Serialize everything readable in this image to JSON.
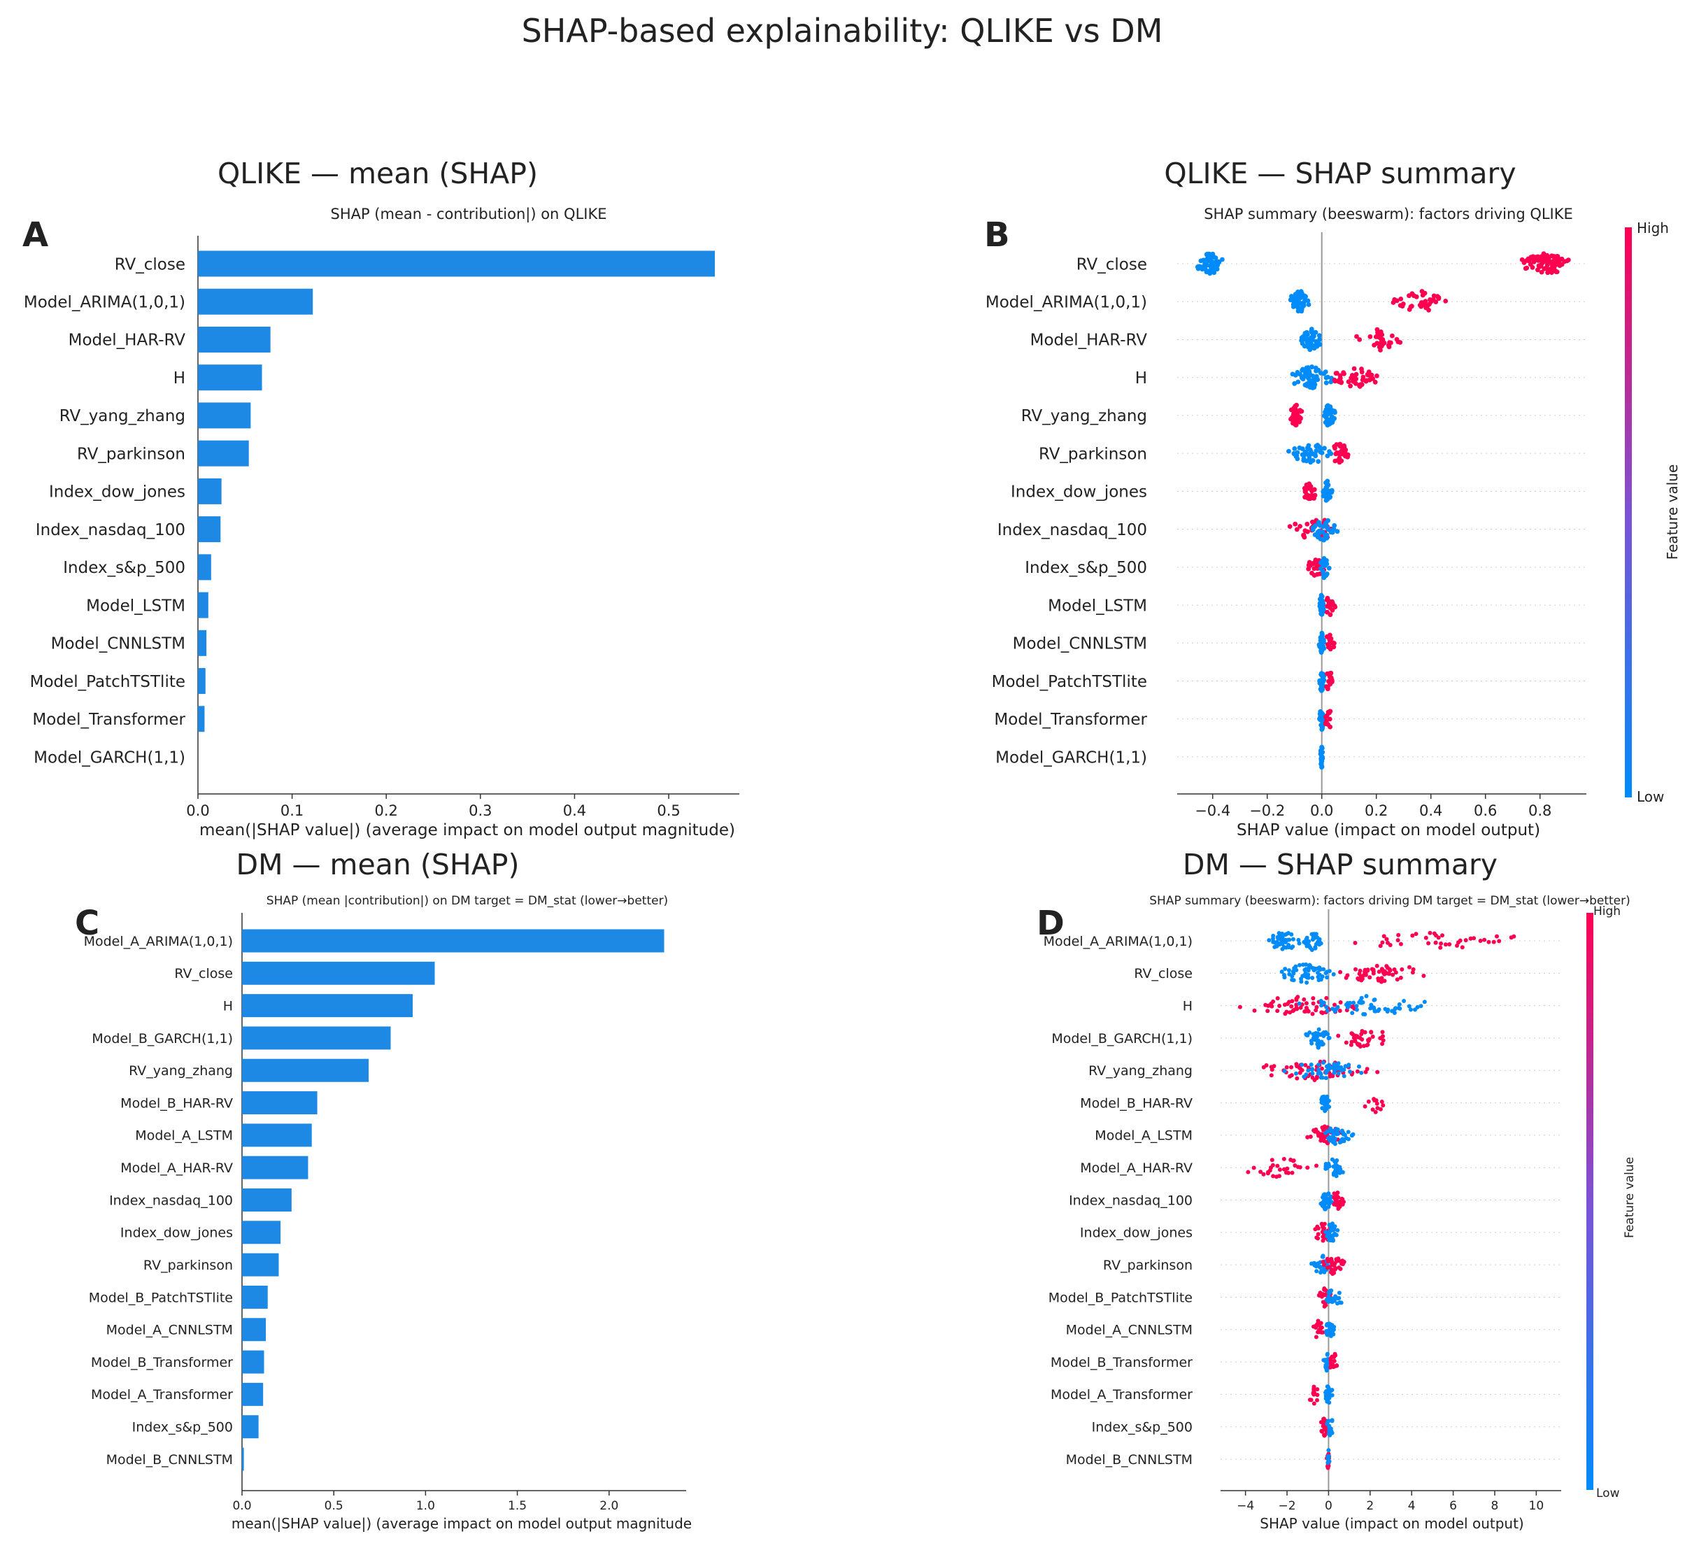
{
  "figure": {
    "title": "SHAP-based explainability: QLIKE vs DM"
  },
  "colors": {
    "bar": "#1E88E5",
    "low": "#008BFB",
    "high": "#FF0051",
    "axis": "#333333",
    "zero_line": "#999999",
    "row_guide": "#cccccc"
  },
  "chart_data": [
    {
      "id": "A",
      "type": "bar",
      "orientation": "horizontal",
      "panel_letter": "A",
      "heading": "QLIKE — mean (SHAP)",
      "title": "SHAP (mean - contribution|) on QLIKE",
      "xlabel": "mean(|SHAP value|) (average impact on model output magnitude)",
      "xlim": [
        0,
        0.575
      ],
      "xticks": [
        0.0,
        0.1,
        0.2,
        0.3,
        0.4,
        0.5
      ],
      "xtick_labels": [
        "0.0",
        "0.1",
        "0.2",
        "0.3",
        "0.4",
        "0.5"
      ],
      "categories": [
        "RV_close",
        "Model_ARIMA(1,0,1)",
        "Model_HAR-RV",
        "H",
        "RV_yang_zhang",
        "RV_parkinson",
        "Index_dow_jones",
        "Index_nasdaq_100",
        "Index_s&p_500",
        "Model_LSTM",
        "Model_CNNLSTM",
        "Model_PatchTSTlite",
        "Model_Transformer",
        "Model_GARCH(1,1)"
      ],
      "values": [
        0.549,
        0.122,
        0.077,
        0.068,
        0.056,
        0.054,
        0.025,
        0.024,
        0.014,
        0.011,
        0.009,
        0.008,
        0.007,
        0.0
      ]
    },
    {
      "id": "B",
      "type": "scatter",
      "variant": "beeswarm",
      "panel_letter": "B",
      "heading": "QLIKE — SHAP summary",
      "title": "SHAP summary (beeswarm): factors driving QLIKE",
      "xlabel": "SHAP value (impact on model output)",
      "xlim": [
        -0.53,
        0.97
      ],
      "xticks": [
        -0.4,
        -0.2,
        0.0,
        0.2,
        0.4,
        0.6,
        0.8
      ],
      "xtick_labels": [
        "−0.4",
        "−0.2",
        "0.0",
        "0.2",
        "0.4",
        "0.6",
        "0.8"
      ],
      "colorbar": {
        "high": "High",
        "low": "Low",
        "label": "Feature value"
      },
      "features": [
        {
          "name": "RV_close",
          "groups": [
            {
              "c": "low",
              "r": [
                -0.46,
                -0.36
              ],
              "n": 70
            },
            {
              "c": "high",
              "r": [
                0.73,
                0.92
              ],
              "n": 80
            }
          ]
        },
        {
          "name": "Model_ARIMA(1,0,1)",
          "groups": [
            {
              "c": "low",
              "r": [
                -0.12,
                -0.04
              ],
              "n": 50
            },
            {
              "c": "high",
              "r": [
                0.24,
                0.47
              ],
              "n": 40
            }
          ]
        },
        {
          "name": "Model_HAR-RV",
          "groups": [
            {
              "c": "low",
              "r": [
                -0.08,
                -0.0
              ],
              "n": 45
            },
            {
              "c": "high",
              "r": [
                0.12,
                0.3
              ],
              "n": 35
            }
          ]
        },
        {
          "name": "H",
          "groups": [
            {
              "c": "low",
              "r": [
                -0.13,
                0.05
              ],
              "n": 60
            },
            {
              "c": "high",
              "r": [
                0.04,
                0.21
              ],
              "n": 45
            }
          ]
        },
        {
          "name": "RV_yang_zhang",
          "groups": [
            {
              "c": "high",
              "r": [
                -0.12,
                -0.07
              ],
              "n": 40
            },
            {
              "c": "low",
              "r": [
                0.0,
                0.05
              ],
              "n": 40
            }
          ]
        },
        {
          "name": "RV_parkinson",
          "groups": [
            {
              "c": "low",
              "r": [
                -0.13,
                0.04
              ],
              "n": 45
            },
            {
              "c": "high",
              "r": [
                0.03,
                0.1
              ],
              "n": 30
            }
          ]
        },
        {
          "name": "Index_dow_jones",
          "groups": [
            {
              "c": "high",
              "r": [
                -0.07,
                -0.01
              ],
              "n": 25
            },
            {
              "c": "low",
              "r": [
                0.0,
                0.04
              ],
              "n": 30
            }
          ]
        },
        {
          "name": "Index_nasdaq_100",
          "groups": [
            {
              "c": "high",
              "r": [
                -0.12,
                0.08
              ],
              "n": 35
            },
            {
              "c": "low",
              "r": [
                -0.05,
                0.06
              ],
              "n": 35
            }
          ]
        },
        {
          "name": "Index_s&p_500",
          "groups": [
            {
              "c": "high",
              "r": [
                -0.06,
                0.02
              ],
              "n": 25
            },
            {
              "c": "low",
              "r": [
                -0.01,
                0.03
              ],
              "n": 25
            }
          ]
        },
        {
          "name": "Model_LSTM",
          "groups": [
            {
              "c": "low",
              "r": [
                -0.01,
                0.01
              ],
              "n": 30
            },
            {
              "c": "high",
              "r": [
                0.01,
                0.05
              ],
              "n": 15
            }
          ]
        },
        {
          "name": "Model_CNNLSTM",
          "groups": [
            {
              "c": "low",
              "r": [
                -0.01,
                0.01
              ],
              "n": 30
            },
            {
              "c": "high",
              "r": [
                0.01,
                0.05
              ],
              "n": 15
            }
          ]
        },
        {
          "name": "Model_PatchTSTlite",
          "groups": [
            {
              "c": "low",
              "r": [
                -0.01,
                0.01
              ],
              "n": 30
            },
            {
              "c": "high",
              "r": [
                0.01,
                0.05
              ],
              "n": 15
            }
          ]
        },
        {
          "name": "Model_Transformer",
          "groups": [
            {
              "c": "low",
              "r": [
                -0.01,
                0.01
              ],
              "n": 30
            },
            {
              "c": "high",
              "r": [
                0.01,
                0.04
              ],
              "n": 12
            }
          ]
        },
        {
          "name": "Model_GARCH(1,1)",
          "groups": [
            {
              "c": "low",
              "r": [
                -0.005,
                0.005
              ],
              "n": 30
            }
          ]
        }
      ]
    },
    {
      "id": "C",
      "type": "bar",
      "orientation": "horizontal",
      "panel_letter": "C",
      "heading": "DM — mean (SHAP)",
      "title": "SHAP (mean |contribution|) on DM target = DM_stat (lower→better)",
      "xlabel": "mean(|SHAP value|) (average impact on model output magnitude",
      "xlim": [
        0,
        2.42
      ],
      "xticks": [
        0.0,
        0.5,
        1.0,
        1.5,
        2.0
      ],
      "xtick_labels": [
        "0.0",
        "0.5",
        "1.0",
        "1.5",
        "2.0"
      ],
      "categories": [
        "Model_A_ARIMA(1,0,1)",
        "RV_close",
        "H",
        "Model_B_GARCH(1,1)",
        "RV_yang_zhang",
        "Model_B_HAR-RV",
        "Model_A_LSTM",
        "Model_A_HAR-RV",
        "Index_nasdaq_100",
        "Index_dow_jones",
        "RV_parkinson",
        "Model_B_PatchTSTlite",
        "Model_A_CNNLSTM",
        "Model_B_Transformer",
        "Model_A_Transformer",
        "Index_s&p_500",
        "Model_B_CNNLSTM"
      ],
      "values": [
        2.3,
        1.05,
        0.93,
        0.81,
        0.69,
        0.41,
        0.38,
        0.36,
        0.27,
        0.21,
        0.2,
        0.14,
        0.13,
        0.12,
        0.115,
        0.09,
        0.01
      ]
    },
    {
      "id": "D",
      "type": "scatter",
      "variant": "beeswarm",
      "panel_letter": "D",
      "heading": "DM — SHAP summary",
      "title": "SHAP summary (beeswarm): factors driving DM target = DM_stat (lower→better)",
      "xlabel": "SHAP value (impact on model output)",
      "xlim": [
        -5.2,
        11.2
      ],
      "xticks": [
        -4,
        -2,
        0,
        2,
        4,
        6,
        8,
        10
      ],
      "xtick_labels": [
        "−4",
        "−2",
        "0",
        "2",
        "4",
        "6",
        "8",
        "10"
      ],
      "colorbar": {
        "high": "High",
        "low": "Low",
        "label": "Feature value"
      },
      "features": [
        {
          "name": "Model_A_ARIMA(1,0,1)",
          "groups": [
            {
              "c": "low",
              "r": [
                -3.0,
                -1.2
              ],
              "n": 45
            },
            {
              "c": "low",
              "r": [
                -1.3,
                -0.3
              ],
              "n": 30
            },
            {
              "c": "high",
              "r": [
                1.2,
                10.0
              ],
              "n": 40
            }
          ]
        },
        {
          "name": "RV_close",
          "groups": [
            {
              "c": "low",
              "r": [
                -2.5,
                0.3
              ],
              "n": 60
            },
            {
              "c": "high",
              "r": [
                0.2,
                4.8
              ],
              "n": 55
            }
          ]
        },
        {
          "name": "H",
          "groups": [
            {
              "c": "high",
              "r": [
                -4.5,
                2.0
              ],
              "n": 60
            },
            {
              "c": "low",
              "r": [
                -1.5,
                5.2
              ],
              "n": 55
            }
          ]
        },
        {
          "name": "Model_B_GARCH(1,1)",
          "groups": [
            {
              "c": "low",
              "r": [
                -1.2,
                0.2
              ],
              "n": 40
            },
            {
              "c": "high",
              "r": [
                0.3,
                3.2
              ],
              "n": 35
            }
          ]
        },
        {
          "name": "RV_yang_zhang",
          "groups": [
            {
              "c": "high",
              "r": [
                -4.0,
                2.8
              ],
              "n": 55
            },
            {
              "c": "low",
              "r": [
                -2.3,
                1.8
              ],
              "n": 50
            }
          ]
        },
        {
          "name": "Model_B_HAR-RV",
          "groups": [
            {
              "c": "low",
              "r": [
                -0.4,
                0.05
              ],
              "n": 30
            },
            {
              "c": "high",
              "r": [
                1.7,
                2.9
              ],
              "n": 12
            }
          ]
        },
        {
          "name": "Model_A_LSTM",
          "groups": [
            {
              "c": "high",
              "r": [
                -1.1,
                0.8
              ],
              "n": 45
            },
            {
              "c": "low",
              "r": [
                -0.3,
                1.2
              ],
              "n": 40
            }
          ]
        },
        {
          "name": "Model_A_HAR-RV",
          "groups": [
            {
              "c": "high",
              "r": [
                -4.3,
                -0.4
              ],
              "n": 30
            },
            {
              "c": "low",
              "r": [
                -0.2,
                0.8
              ],
              "n": 30
            }
          ]
        },
        {
          "name": "Index_nasdaq_100",
          "groups": [
            {
              "c": "low",
              "r": [
                -0.5,
                0.2
              ],
              "n": 35
            },
            {
              "c": "high",
              "r": [
                0.1,
                0.8
              ],
              "n": 25
            }
          ]
        },
        {
          "name": "Index_dow_jones",
          "groups": [
            {
              "c": "high",
              "r": [
                -0.8,
                0.3
              ],
              "n": 30
            },
            {
              "c": "low",
              "r": [
                -0.2,
                0.5
              ],
              "n": 30
            }
          ]
        },
        {
          "name": "RV_parkinson",
          "groups": [
            {
              "c": "low",
              "r": [
                -0.9,
                0.4
              ],
              "n": 35
            },
            {
              "c": "high",
              "r": [
                -0.3,
                0.8
              ],
              "n": 30
            }
          ]
        },
        {
          "name": "Model_B_PatchTSTlite",
          "groups": [
            {
              "c": "high",
              "r": [
                -0.6,
                0.2
              ],
              "n": 25
            },
            {
              "c": "low",
              "r": [
                -0.2,
                0.8
              ],
              "n": 25
            }
          ]
        },
        {
          "name": "Model_A_CNNLSTM",
          "groups": [
            {
              "c": "high",
              "r": [
                -0.8,
                -0.2
              ],
              "n": 20
            },
            {
              "c": "low",
              "r": [
                -0.2,
                0.3
              ],
              "n": 25
            }
          ]
        },
        {
          "name": "Model_B_Transformer",
          "groups": [
            {
              "c": "low",
              "r": [
                -0.3,
                0.1
              ],
              "n": 25
            },
            {
              "c": "high",
              "r": [
                0.0,
                0.5
              ],
              "n": 15
            }
          ]
        },
        {
          "name": "Model_A_Transformer",
          "groups": [
            {
              "c": "high",
              "r": [
                -1.0,
                -0.4
              ],
              "n": 12
            },
            {
              "c": "low",
              "r": [
                -0.2,
                0.2
              ],
              "n": 25
            }
          ]
        },
        {
          "name": "Index_s&p_500",
          "groups": [
            {
              "c": "high",
              "r": [
                -0.4,
                0.0
              ],
              "n": 20
            },
            {
              "c": "low",
              "r": [
                -0.1,
                0.3
              ],
              "n": 20
            }
          ]
        },
        {
          "name": "Model_B_CNNLSTM",
          "groups": [
            {
              "c": "high",
              "r": [
                -0.1,
                0.05
              ],
              "n": 15
            },
            {
              "c": "low",
              "r": [
                -0.05,
                0.05
              ],
              "n": 10
            }
          ]
        }
      ]
    }
  ]
}
